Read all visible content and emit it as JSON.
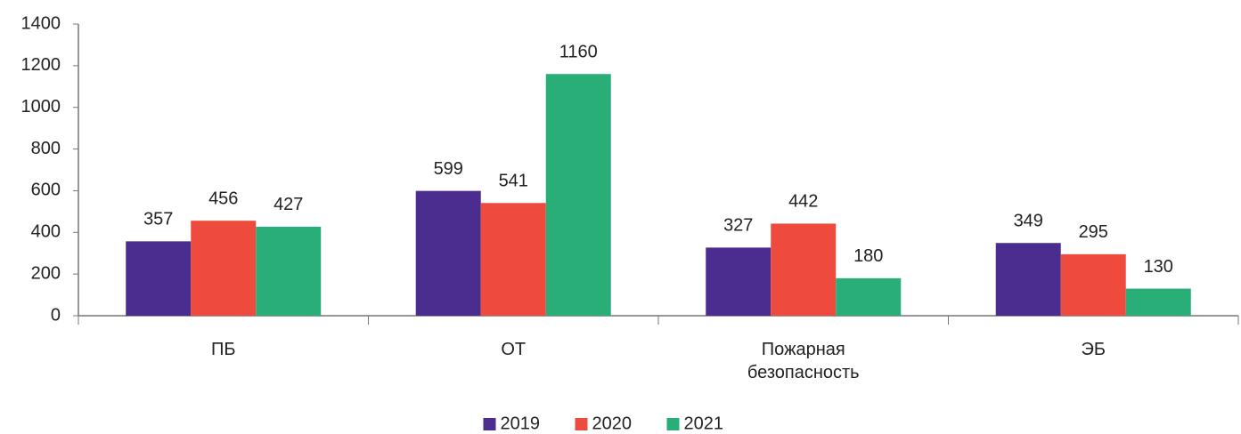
{
  "chart_data": {
    "type": "bar",
    "categories": [
      "ПБ",
      "ОТ",
      "Пожарная безопасность",
      "ЭБ"
    ],
    "series": [
      {
        "name": "2019",
        "color": "#4b2c8f",
        "values": [
          357,
          599,
          327,
          349
        ]
      },
      {
        "name": "2020",
        "color": "#ee4a3e",
        "values": [
          456,
          541,
          442,
          295
        ]
      },
      {
        "name": "2021",
        "color": "#2aae78",
        "values": [
          427,
          1160,
          180,
          130
        ]
      }
    ],
    "ylim": [
      0,
      1400
    ],
    "yticks": [
      0,
      200,
      400,
      600,
      800,
      1000,
      1200,
      1400
    ],
    "grid": false,
    "legend": "bottom"
  }
}
